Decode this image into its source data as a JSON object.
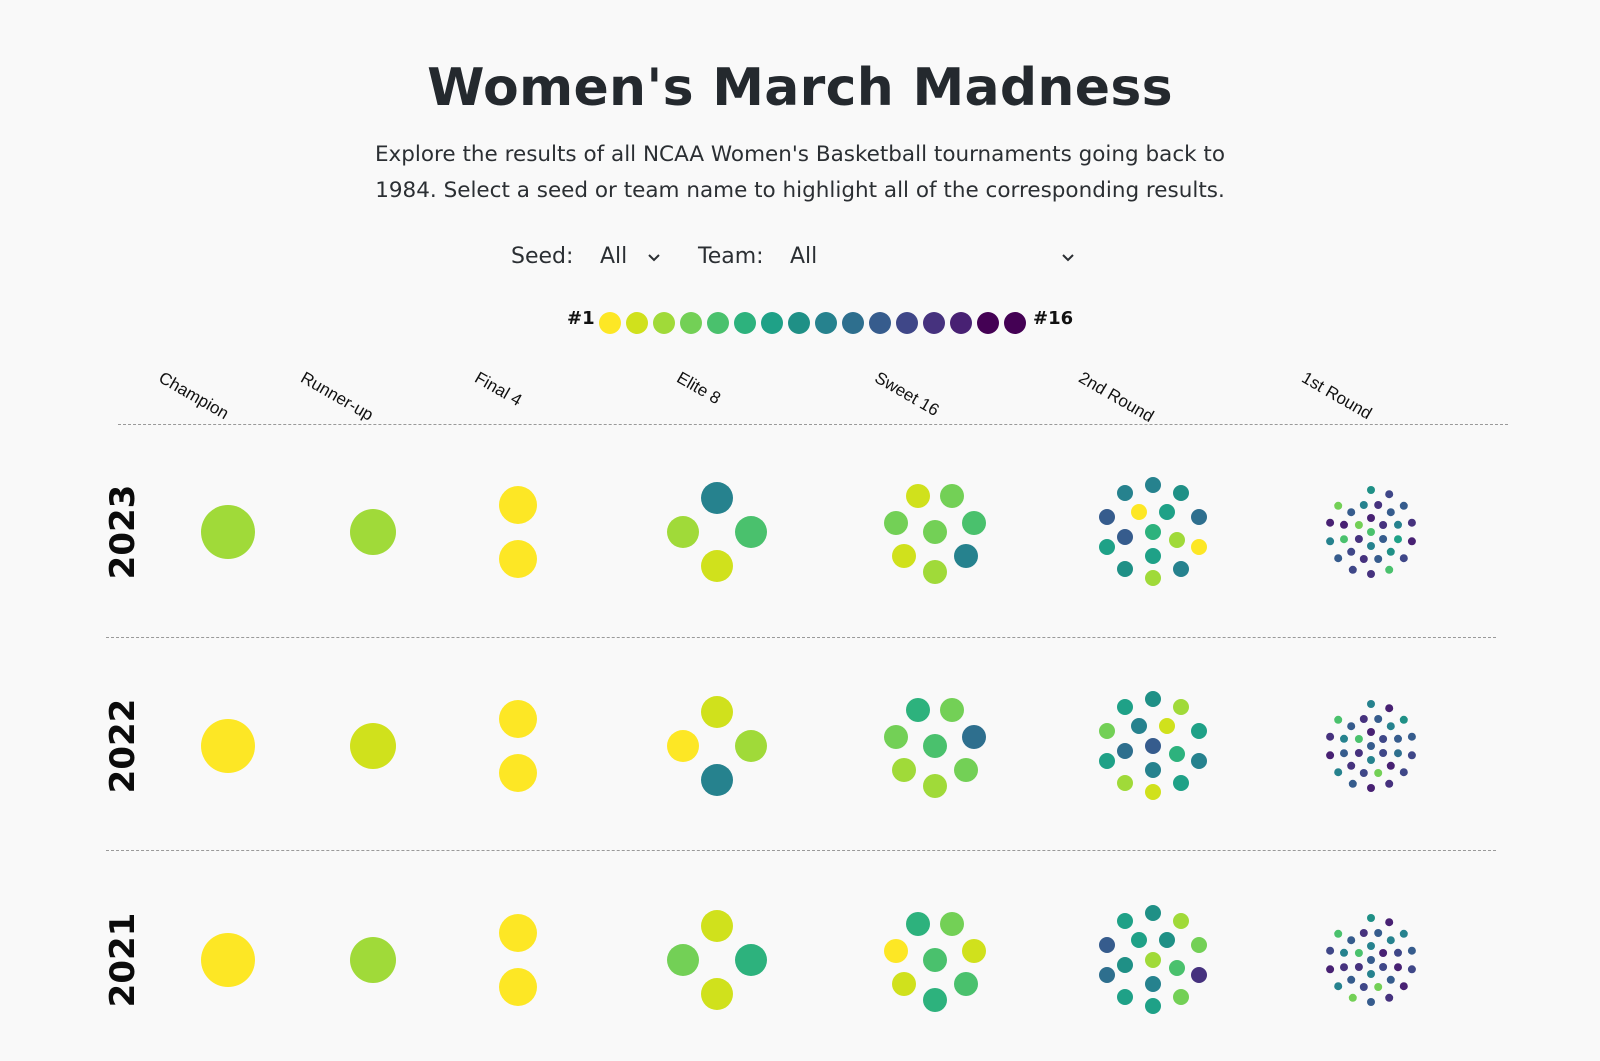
{
  "page": {
    "title": "Women's March Madness",
    "subtitle_line1": "Explore the results of all NCAA Women's Basketball tournaments going back to",
    "subtitle_line2": "1984. Select a seed or team name to highlight all of the corresponding results."
  },
  "filters": {
    "seed_label": "Seed:",
    "seed_value": "All",
    "team_label": "Team:",
    "team_value": "All"
  },
  "legend": {
    "min_label": "#1",
    "max_label": "#16",
    "seed_colors": [
      "#fde725",
      "#d0e11c",
      "#a0da39",
      "#73d056",
      "#4ac16d",
      "#2db27d",
      "#1fa187",
      "#1f9086",
      "#26828e",
      "#2e6f8e",
      "#365c8d",
      "#3f4788",
      "#46327e",
      "#482173",
      "#440154",
      "#440154"
    ]
  },
  "chart_data": {
    "type": "scatter",
    "rounds": [
      "Champion",
      "Runner-up",
      "Final 4",
      "Elite 8",
      "Sweet 16",
      "2nd Round",
      "1st Round"
    ],
    "years": [
      {
        "year": "2023",
        "seeds": {
          "Champion": [
            3
          ],
          "Runner-up": [
            3
          ],
          "Final 4": [
            1,
            1
          ],
          "Elite 8": [
            9,
            3,
            5,
            2
          ],
          "Sweet 16": [
            2,
            4,
            4,
            4,
            5,
            2,
            9,
            3
          ],
          "2nd Round": [
            9,
            9,
            8,
            11,
            1,
            7,
            10,
            11,
            6,
            3,
            7,
            1,
            8,
            7,
            9,
            3
          ],
          "1st Round": [
            5,
            14,
            13,
            11,
            9,
            13,
            4,
            13,
            11,
            9,
            7,
            8,
            11,
            13,
            12,
            5,
            14,
            11,
            9,
            8,
            12,
            11,
            13,
            14,
            12,
            5,
            13,
            12,
            11,
            9,
            14,
            4
          ]
        }
      },
      {
        "year": "2022",
        "seeds": {
          "Champion": [
            1
          ],
          "Runner-up": [
            2
          ],
          "Final 4": [
            1,
            1
          ],
          "Elite 8": [
            2,
            1,
            3,
            9
          ],
          "Sweet 16": [
            6,
            4,
            4,
            5,
            10,
            3,
            4,
            3
          ],
          "2nd Round": [
            8,
            7,
            3,
            4,
            9,
            2,
            7,
            10,
            11,
            6,
            7,
            9,
            3,
            9,
            7,
            2
          ],
          "1st Round": [
            11,
            14,
            12,
            12,
            9,
            13,
            5,
            11,
            9,
            11,
            10,
            14,
            4,
            12,
            13,
            11,
            9,
            11,
            13,
            9,
            14,
            8,
            11,
            12,
            12,
            13,
            14,
            11,
            9,
            14,
            13,
            5
          ]
        }
      },
      {
        "year": "2021",
        "seeds": {
          "Champion": [
            1
          ],
          "Runner-up": [
            3
          ],
          "Final 4": [
            1,
            1
          ],
          "Elite 8": [
            2,
            4,
            6,
            2
          ],
          "Sweet 16": [
            6,
            4,
            1,
            5,
            2,
            2,
            5,
            6
          ],
          "2nd Round": [
            8,
            7,
            3,
            11,
            7,
            8,
            4,
            8,
            3,
            5,
            10,
            13,
            7,
            9,
            4,
            7
          ],
          "1st Round": [
            11,
            9,
            14,
            12,
            9,
            13,
            5,
            11,
            9,
            12,
            14,
            11,
            4,
            12,
            11,
            13,
            9,
            11,
            13,
            8,
            14,
            9,
            11,
            12,
            14,
            13,
            11,
            4,
            9,
            14,
            12,
            5
          ]
        }
      }
    ]
  }
}
